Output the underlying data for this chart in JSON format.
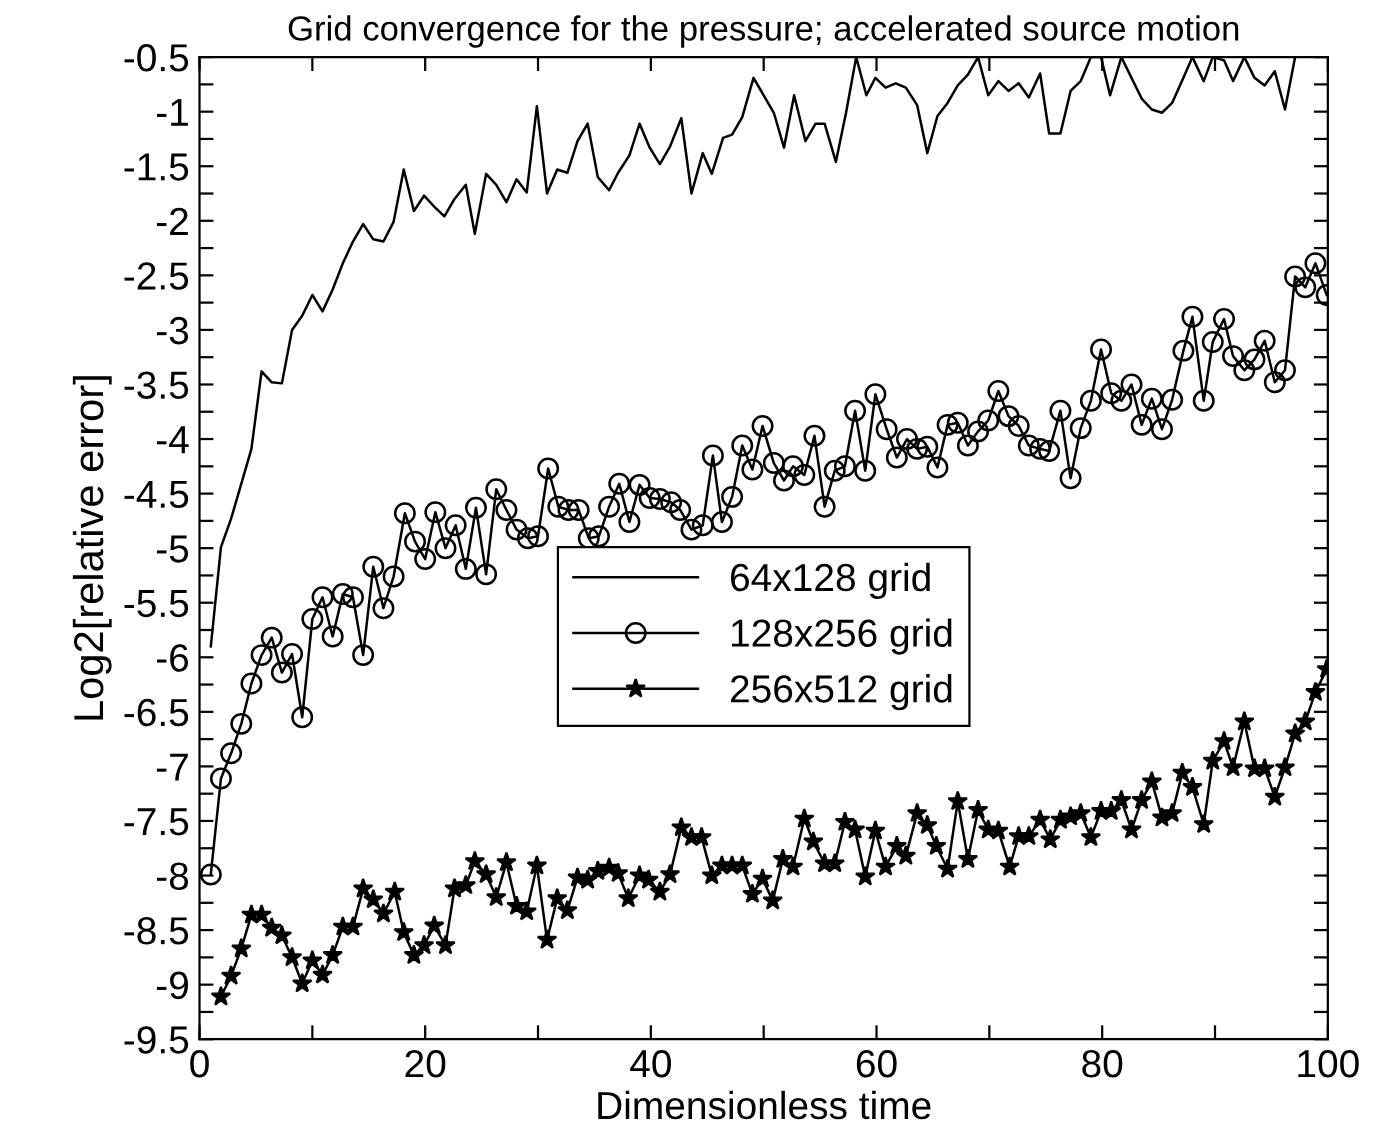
{
  "chart_data": {
    "type": "line",
    "title": "Grid convergence for the pressure; accelerated source motion",
    "xlabel": "Dimensionless time",
    "ylabel": "Log2[relative error]",
    "xlim": [
      0,
      100
    ],
    "ylim": [
      -9.5,
      -0.5
    ],
    "xticks": [
      0,
      {
        "value": 10,
        "label": null
      },
      20,
      {
        "value": 30,
        "label": null
      },
      40,
      {
        "value": 50,
        "label": null
      },
      60,
      {
        "value": 70,
        "label": null
      },
      80,
      {
        "value": 90,
        "label": null
      },
      100
    ],
    "yticks": [
      -9.5,
      {
        "value": -9.25,
        "label": null
      },
      -9,
      {
        "value": -8.75,
        "label": null
      },
      -8.5,
      {
        "value": -8.25,
        "label": null
      },
      -8,
      {
        "value": -7.75,
        "label": null
      },
      -7.5,
      {
        "value": -7.25,
        "label": null
      },
      -7,
      {
        "value": -6.75,
        "label": null
      },
      -6.5,
      {
        "value": -6.25,
        "label": null
      },
      -6,
      {
        "value": -5.75,
        "label": null
      },
      -5.5,
      {
        "value": -5.25,
        "label": null
      },
      -5,
      {
        "value": -4.75,
        "label": null
      },
      -4.5,
      {
        "value": -4.25,
        "label": null
      },
      -4,
      {
        "value": -3.75,
        "label": null
      },
      -3.5,
      {
        "value": -3.25,
        "label": null
      },
      -3,
      {
        "value": -2.75,
        "label": null
      },
      -2.5,
      {
        "value": -2.25,
        "label": null
      },
      -2,
      {
        "value": -1.75,
        "label": null
      },
      -1.5,
      {
        "value": -1.25,
        "label": null
      },
      -1,
      {
        "value": -0.75,
        "label": null
      },
      -0.5
    ],
    "grid": false,
    "legend": "center",
    "line_style": "solid",
    "series": [
      {
        "name": "64x128 grid",
        "color": "#000000",
        "marker": "none",
        "x": [
          1.0,
          1.9,
          2.8,
          3.7,
          4.6,
          5.5,
          6.4,
          7.3,
          8.2,
          9.1,
          10.0,
          10.9,
          11.8,
          12.7,
          13.6,
          14.5,
          15.4,
          16.3,
          17.2,
          18.1,
          19.0,
          19.9,
          20.8,
          21.7,
          22.6,
          23.6,
          24.4,
          25.4,
          26.3,
          27.2,
          28.1,
          29.0,
          29.9,
          30.8,
          31.7,
          32.6,
          33.5,
          34.4,
          35.3,
          36.3,
          37.1,
          38.1,
          39.0,
          39.9,
          40.8,
          41.7,
          42.7,
          43.6,
          44.6,
          45.4,
          46.4,
          47.2,
          48.1,
          49.1,
          50.0,
          50.9,
          51.8,
          52.7,
          53.7,
          54.6,
          55.4,
          56.4,
          57.3,
          58.2,
          59.1,
          59.9,
          60.8,
          61.7,
          62.6,
          63.6,
          64.5,
          65.4,
          66.3,
          67.2,
          68.1,
          69.0,
          69.9,
          70.8,
          71.7,
          72.6,
          73.5,
          74.5,
          75.3,
          76.3,
          77.2,
          78.1,
          79.0,
          79.9,
          80.7,
          81.7,
          82.6,
          83.5,
          84.4,
          85.3,
          86.2,
          87.2,
          88.0,
          89.0,
          89.8,
          90.8,
          91.6,
          92.6,
          93.5,
          94.4,
          95.3,
          96.2,
          97.1
        ],
        "values": [
          -5.9,
          -4.99,
          -4.73,
          -4.41,
          -4.09,
          -3.38,
          -3.48,
          -3.49,
          -3.0,
          -2.87,
          -2.68,
          -2.83,
          -2.63,
          -2.39,
          -2.19,
          -2.03,
          -2.17,
          -2.19,
          -2.01,
          -1.53,
          -1.91,
          -1.77,
          -1.87,
          -1.96,
          -1.8,
          -1.67,
          -2.12,
          -1.57,
          -1.67,
          -1.83,
          -1.62,
          -1.74,
          -0.95,
          -1.75,
          -1.53,
          -1.56,
          -1.27,
          -1.11,
          -1.6,
          -1.72,
          -1.56,
          -1.4,
          -1.11,
          -1.33,
          -1.48,
          -1.32,
          -1.06,
          -1.75,
          -1.38,
          -1.57,
          -1.24,
          -1.21,
          -1.05,
          -0.69,
          -0.85,
          -1.01,
          -1.33,
          -0.85,
          -1.27,
          -1.11,
          -1.11,
          -1.46,
          -1.01,
          -0.5,
          -0.85,
          -0.69,
          -0.78,
          -0.74,
          -0.78,
          -0.94,
          -1.38,
          -1.04,
          -0.92,
          -0.76,
          -0.66,
          -0.5,
          -0.85,
          -0.72,
          -0.81,
          -0.74,
          -0.87,
          -0.65,
          -1.2,
          -1.2,
          -0.81,
          -0.72,
          -0.5,
          -0.5,
          -0.85,
          -0.5,
          -0.69,
          -0.88,
          -0.98,
          -1.01,
          -0.92,
          -0.69,
          -0.5,
          -0.72,
          -0.5,
          -0.53,
          -0.72,
          -0.5,
          -0.69,
          -0.76,
          -0.63,
          -0.98,
          -0.5
        ]
      },
      {
        "name": "128x256 grid",
        "color": "#000000",
        "marker": "circle",
        "x": [
          1.0,
          1.9,
          2.8,
          3.7,
          4.6,
          5.5,
          6.4,
          7.3,
          8.2,
          9.1,
          10.0,
          10.9,
          11.8,
          12.7,
          13.6,
          14.5,
          15.4,
          16.3,
          17.2,
          18.2,
          19.1,
          20.0,
          20.9,
          21.8,
          22.7,
          23.6,
          24.5,
          25.4,
          26.3,
          27.2,
          28.1,
          29.1,
          30.0,
          30.9,
          31.8,
          32.7,
          33.6,
          34.5,
          35.4,
          36.3,
          37.2,
          38.1,
          39.0,
          39.9,
          40.8,
          41.8,
          42.6,
          43.6,
          44.6,
          45.5,
          46.3,
          47.2,
          48.1,
          49.0,
          49.9,
          50.9,
          51.8,
          52.6,
          53.6,
          54.5,
          55.4,
          56.3,
          57.2,
          58.1,
          59.0,
          59.9,
          60.9,
          61.8,
          62.7,
          63.6,
          64.5,
          65.4,
          66.3,
          67.2,
          68.1,
          69.0,
          69.9,
          70.8,
          71.7,
          72.6,
          73.5,
          74.5,
          75.3,
          76.3,
          77.2,
          78.1,
          79.0,
          79.9,
          80.8,
          81.7,
          82.6,
          83.5,
          84.4,
          85.3,
          86.2,
          87.2,
          88.0,
          89.0,
          89.8,
          90.8,
          91.6,
          92.6,
          93.5,
          94.4,
          95.3,
          96.2,
          97.1,
          98.0,
          98.9,
          99.9
        ],
        "values": [
          -7.99,
          -7.11,
          -6.88,
          -6.61,
          -6.24,
          -5.98,
          -5.82,
          -6.14,
          -5.97,
          -6.55,
          -5.65,
          -5.45,
          -5.81,
          -5.42,
          -5.45,
          -5.98,
          -5.17,
          -5.55,
          -5.26,
          -4.68,
          -4.94,
          -5.1,
          -4.67,
          -5.0,
          -4.79,
          -5.19,
          -4.63,
          -5.24,
          -4.46,
          -4.65,
          -4.83,
          -4.91,
          -4.89,
          -4.27,
          -4.62,
          -4.65,
          -4.65,
          -4.91,
          -4.89,
          -4.62,
          -4.41,
          -4.76,
          -4.42,
          -4.54,
          -4.55,
          -4.58,
          -4.65,
          -4.83,
          -4.79,
          -4.15,
          -4.76,
          -4.53,
          -4.06,
          -4.28,
          -3.88,
          -4.22,
          -4.38,
          -4.25,
          -4.33,
          -3.97,
          -4.62,
          -4.29,
          -4.25,
          -3.74,
          -4.29,
          -3.59,
          -3.91,
          -4.17,
          -4.0,
          -4.09,
          -4.07,
          -4.26,
          -3.87,
          -3.85,
          -4.06,
          -3.93,
          -3.83,
          -3.56,
          -3.79,
          -3.88,
          -4.06,
          -4.09,
          -4.11,
          -3.74,
          -4.36,
          -3.9,
          -3.65,
          -3.18,
          -3.58,
          -3.65,
          -3.5,
          -3.87,
          -3.63,
          -3.91,
          -3.64,
          -3.19,
          -2.88,
          -3.65,
          -3.11,
          -2.9,
          -3.24,
          -3.37,
          -3.27,
          -3.1,
          -3.48,
          -3.37,
          -2.51,
          -2.61,
          -2.39,
          -2.68
        ]
      },
      {
        "name": "256x512 grid",
        "color": "#000000",
        "marker": "star",
        "x": [
          1.9,
          2.8,
          3.7,
          4.6,
          5.5,
          6.4,
          7.3,
          8.2,
          9.1,
          10.0,
          10.9,
          11.8,
          12.7,
          13.6,
          14.5,
          15.4,
          16.3,
          17.3,
          18.1,
          19.0,
          19.9,
          20.8,
          21.8,
          22.6,
          23.6,
          24.4,
          25.4,
          26.3,
          27.2,
          28.1,
          29.0,
          29.9,
          30.8,
          31.7,
          32.6,
          33.5,
          34.4,
          35.3,
          36.3,
          37.1,
          38.0,
          39.0,
          39.8,
          40.8,
          41.7,
          42.7,
          43.6,
          44.5,
          45.4,
          46.3,
          47.2,
          48.1,
          49.0,
          49.9,
          50.8,
          51.7,
          52.6,
          53.6,
          54.4,
          55.4,
          56.3,
          57.2,
          58.1,
          59.0,
          59.9,
          60.8,
          61.8,
          62.6,
          63.6,
          64.5,
          65.3,
          66.3,
          67.2,
          68.1,
          69.0,
          69.9,
          70.8,
          71.8,
          72.6,
          73.5,
          74.5,
          75.4,
          76.3,
          77.2,
          78.1,
          79.0,
          79.9,
          80.8,
          81.7,
          82.6,
          83.5,
          84.4,
          85.3,
          86.2,
          87.1,
          88.0,
          89.0,
          89.8,
          90.8,
          91.6,
          92.6,
          93.5,
          94.4,
          95.3,
          96.2,
          97.1,
          98.0,
          98.9,
          99.9
        ],
        "values": [
          -9.11,
          -8.92,
          -8.67,
          -8.36,
          -8.36,
          -8.48,
          -8.55,
          -8.75,
          -8.99,
          -8.78,
          -8.91,
          -8.73,
          -8.47,
          -8.47,
          -8.12,
          -8.22,
          -8.35,
          -8.15,
          -8.52,
          -8.73,
          -8.64,
          -8.46,
          -8.64,
          -8.12,
          -8.09,
          -7.87,
          -7.99,
          -8.2,
          -7.88,
          -8.28,
          -8.33,
          -7.91,
          -8.59,
          -8.21,
          -8.32,
          -8.02,
          -8.04,
          -7.96,
          -7.93,
          -7.98,
          -8.21,
          -8.0,
          -8.04,
          -8.15,
          -7.99,
          -7.56,
          -7.65,
          -7.65,
          -8.0,
          -7.91,
          -7.91,
          -7.91,
          -8.17,
          -8.03,
          -8.23,
          -7.85,
          -7.92,
          -7.48,
          -7.69,
          -7.89,
          -7.89,
          -7.51,
          -7.58,
          -8.01,
          -7.59,
          -7.92,
          -7.73,
          -7.82,
          -7.43,
          -7.54,
          -7.73,
          -7.94,
          -7.32,
          -7.85,
          -7.4,
          -7.58,
          -7.59,
          -7.92,
          -7.64,
          -7.64,
          -7.49,
          -7.67,
          -7.49,
          -7.46,
          -7.43,
          -7.65,
          -7.41,
          -7.41,
          -7.31,
          -7.58,
          -7.31,
          -7.14,
          -7.47,
          -7.43,
          -7.06,
          -7.19,
          -7.53,
          -6.95,
          -6.77,
          -7.01,
          -6.59,
          -7.02,
          -7.02,
          -7.28,
          -7.01,
          -6.7,
          -6.59,
          -6.32,
          -6.11
        ]
      }
    ]
  }
}
